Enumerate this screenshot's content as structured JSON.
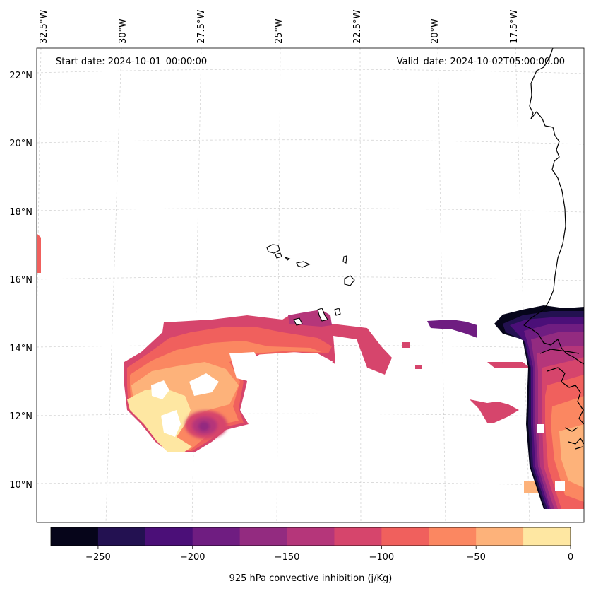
{
  "map": {
    "start_date": "Start date: 2024-10-01_00:00:00",
    "valid_date": "Valid_date: 2024-10-02T05:00:00.00",
    "longitude_labels": [
      "32.5°W",
      "30°W",
      "27.5°W",
      "25°W",
      "22.5°W",
      "20°W",
      "17.5°W"
    ],
    "latitude_labels": [
      "22°N",
      "20°N",
      "18°N",
      "16°N",
      "14°N",
      "12°N",
      "10°N"
    ]
  },
  "colorbar": {
    "label": "925 hPa convective inhibition (j/Kg)",
    "tick_labels": [
      "−250",
      "−200",
      "−150",
      "−100",
      "−50",
      "0"
    ],
    "tick_values": [
      -250,
      -200,
      -150,
      -100,
      -50,
      0
    ],
    "range": [
      -275,
      0
    ],
    "levels": [
      -275,
      -250,
      -225,
      -200,
      -175,
      -150,
      -125,
      -100,
      -75,
      -50,
      -25,
      0
    ],
    "colors": [
      "#06051a",
      "#231151",
      "#4b0f78",
      "#6f1d81",
      "#932b80",
      "#b5367a",
      "#d6456c",
      "#f0605d",
      "#fb8761",
      "#fdb27a",
      "#fee7a2"
    ]
  }
}
